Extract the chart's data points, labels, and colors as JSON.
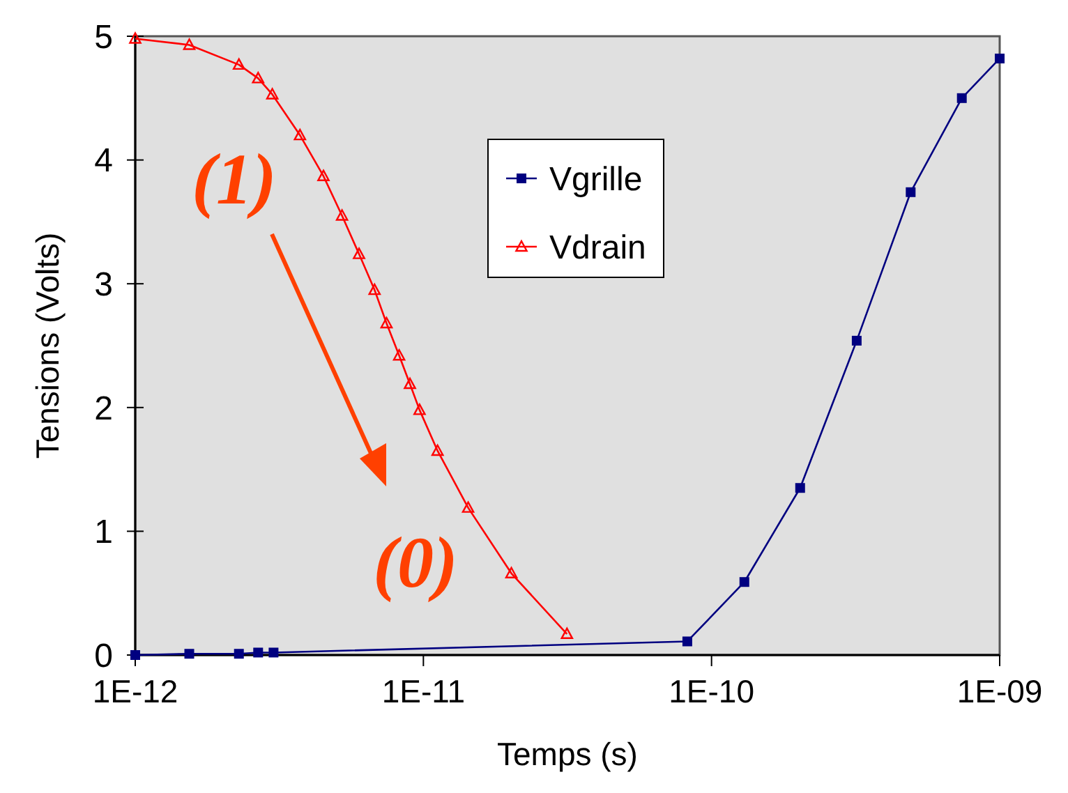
{
  "chart_data": {
    "type": "line",
    "xlabel": "Temps (s)",
    "ylabel": "Tensions (Volts)",
    "log": "x",
    "xlim": [
      1e-12,
      1e-09
    ],
    "xticks": [
      {
        "value": 1e-12,
        "label": "1E-12"
      },
      {
        "value": 1e-11,
        "label": "1E-11"
      },
      {
        "value": 1e-10,
        "label": "1E-10"
      },
      {
        "value": 1e-09,
        "label": "1E-09"
      }
    ],
    "ylim": [
      0,
      5
    ],
    "yticks": [
      0,
      1,
      2,
      3,
      4,
      5
    ],
    "grid": false,
    "legend": "top",
    "line_style": "solid",
    "series": [
      {
        "name": "Vgrille",
        "color": "#000080",
        "marker": "square",
        "x": [
          1e-12,
          1.54e-12,
          2.29e-12,
          2.67e-12,
          3.02e-12,
          8.24e-11,
          1.3e-10,
          2.03e-10,
          3.19e-10,
          4.91e-10,
          7.39e-10,
          1e-09
        ],
        "values": [
          0,
          0.01,
          0.01,
          0.02,
          0.02,
          0.11,
          0.59,
          1.35,
          2.54,
          3.74,
          4.5,
          4.82
        ]
      },
      {
        "name": "Vdrain",
        "color": "#ff0000",
        "marker": "triangle",
        "x": [
          1e-12,
          1.54e-12,
          2.29e-12,
          2.67e-12,
          2.99e-12,
          3.73e-12,
          4.5e-12,
          5.22e-12,
          5.98e-12,
          6.77e-12,
          7.45e-12,
          8.24e-12,
          8.98e-12,
          9.7e-12,
          1.12e-11,
          1.43e-11,
          2.02e-11,
          3.15e-11
        ],
        "values": [
          4.98,
          4.93,
          4.77,
          4.66,
          4.53,
          4.2,
          3.87,
          3.55,
          3.24,
          2.95,
          2.68,
          2.42,
          2.19,
          1.98,
          1.65,
          1.19,
          0.66,
          0.17
        ]
      }
    ],
    "annotations": [
      "(1)",
      "(0)"
    ]
  }
}
